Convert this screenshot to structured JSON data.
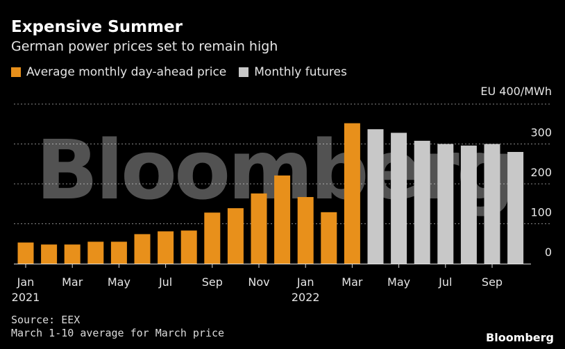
{
  "header": {
    "title": "Expensive Summer",
    "subtitle": "German power prices set to remain high"
  },
  "legend": {
    "items": [
      {
        "label": "Average monthly day-ahead price",
        "color": "#e8901b"
      },
      {
        "label": "Monthly futures",
        "color": "#c8c8c8"
      }
    ]
  },
  "chart_data": {
    "type": "bar",
    "unit_label": "EU 400/MWh",
    "yticks": [
      "400",
      "300",
      "200",
      "100",
      "0"
    ],
    "ylim": [
      0,
      400
    ],
    "grid": true,
    "categories": [
      "Jan 2021",
      "Feb 2021",
      "Mar 2021",
      "Apr 2021",
      "May 2021",
      "Jun 2021",
      "Jul 2021",
      "Aug 2021",
      "Sep 2021",
      "Oct 2021",
      "Nov 2021",
      "Dec 2021",
      "Jan 2022",
      "Feb 2022",
      "Mar 2022",
      "Apr 2022",
      "May 2022",
      "Jun 2022",
      "Jul 2022",
      "Aug 2022",
      "Sep 2022",
      "Oct 2022"
    ],
    "series": [
      {
        "name": "Average monthly day-ahead price",
        "color": "#e8901b",
        "values": [
          53,
          48,
          48,
          55,
          55,
          74,
          81,
          83,
          128,
          139,
          176,
          221,
          167,
          129,
          352,
          null,
          null,
          null,
          null,
          null,
          null,
          null
        ]
      },
      {
        "name": "Monthly futures",
        "color": "#c8c8c8",
        "values": [
          null,
          null,
          null,
          null,
          null,
          null,
          null,
          null,
          null,
          null,
          null,
          null,
          null,
          null,
          null,
          337,
          328,
          308,
          300,
          296,
          300,
          280
        ]
      }
    ],
    "xtick_labels": [
      {
        "index": 0,
        "month": "Jan",
        "year": "2021"
      },
      {
        "index": 2,
        "month": "Mar",
        "year": ""
      },
      {
        "index": 4,
        "month": "May",
        "year": ""
      },
      {
        "index": 6,
        "month": "Jul",
        "year": ""
      },
      {
        "index": 8,
        "month": "Sep",
        "year": ""
      },
      {
        "index": 10,
        "month": "Nov",
        "year": ""
      },
      {
        "index": 12,
        "month": "Jan",
        "year": "2022"
      },
      {
        "index": 14,
        "month": "Mar",
        "year": ""
      },
      {
        "index": 16,
        "month": "May",
        "year": ""
      },
      {
        "index": 18,
        "month": "Jul",
        "year": ""
      },
      {
        "index": 20,
        "month": "Sep",
        "year": ""
      }
    ],
    "watermark": "Bloomberg"
  },
  "footer": {
    "source": "Source: EEX",
    "note": "March 1-10 average for March price",
    "brand": "Bloomberg"
  }
}
